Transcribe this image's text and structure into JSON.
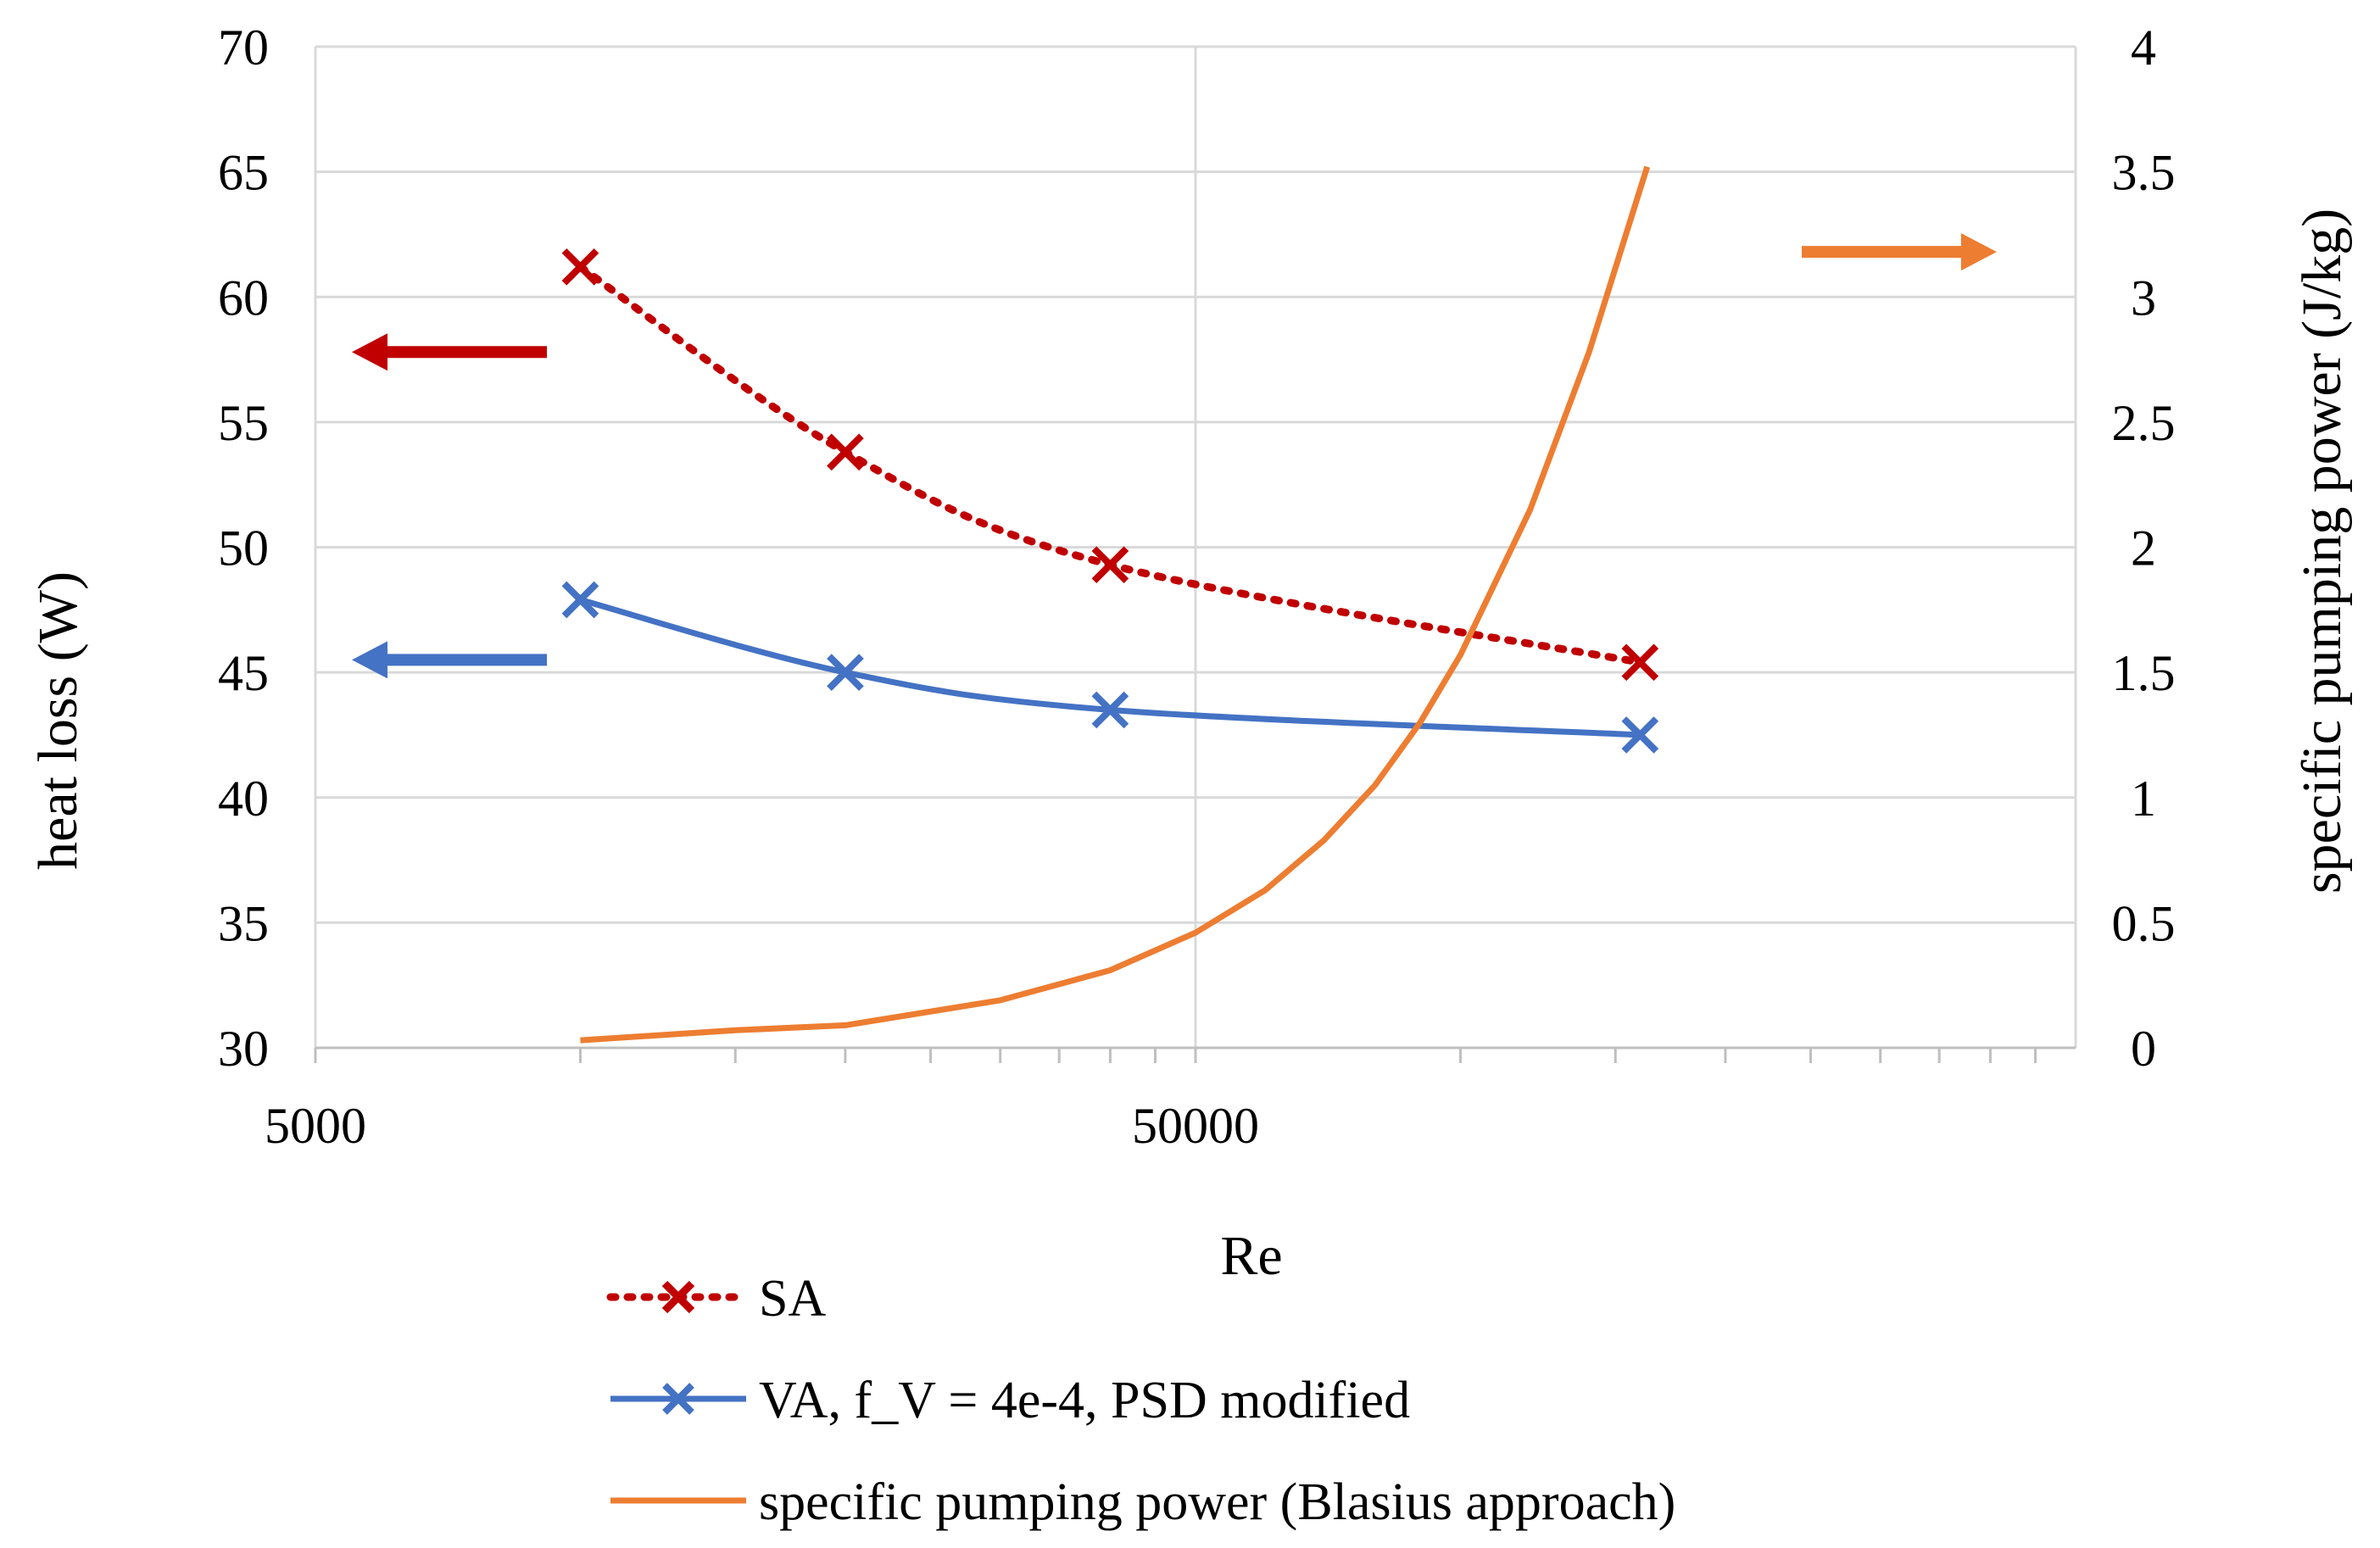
{
  "chart_data": {
    "type": "line",
    "title": "",
    "xlabel": "Re",
    "ylabel_left": "heat loss (W)",
    "ylabel_right": "specific pumping power (J/kg)",
    "x_scale": "log",
    "xlim": [
      5000,
      500000
    ],
    "x_ticklabels": [
      "5000",
      "50000"
    ],
    "ylim_left": [
      30,
      70
    ],
    "yticks_left": [
      "30",
      "35",
      "40",
      "45",
      "50",
      "55",
      "60",
      "65",
      "70"
    ],
    "ylim_right": [
      0,
      4
    ],
    "yticks_right": [
      "0",
      "0.5",
      "1",
      "1.5",
      "2",
      "2.5",
      "3",
      "3.5",
      "4"
    ],
    "gridlines": true,
    "legend_position": "bottom",
    "series": [
      {
        "name": "SA",
        "axis": "left",
        "color": "#C00000",
        "style": "dotted",
        "marker": "x",
        "x": [
          10000,
          20000,
          40000,
          160000
        ],
        "values": [
          61.2,
          53.8,
          49.3,
          45.4
        ]
      },
      {
        "name": "VA, f_V = 4e-4, PSD modified",
        "axis": "left",
        "color": "#4472C4",
        "style": "solid",
        "marker": "x",
        "x": [
          10000,
          20000,
          40000,
          160000
        ],
        "values": [
          47.9,
          45.0,
          43.5,
          42.5
        ]
      },
      {
        "name": "specific pumping power (Blasius approach)",
        "axis": "right",
        "color": "#ED7D31",
        "style": "solid",
        "marker": "none",
        "x": [
          10000,
          15000,
          20000,
          30000,
          40000,
          50000,
          60000,
          70000,
          80000,
          90000,
          100000,
          120000,
          140000,
          163000
        ],
        "values": [
          0.03,
          0.07,
          0.09,
          0.19,
          0.31,
          0.46,
          0.63,
          0.83,
          1.05,
          1.3,
          1.57,
          2.15,
          2.78,
          3.52
        ]
      }
    ],
    "annotations": [
      {
        "type": "arrow",
        "direction": "left",
        "axis_ref": "left",
        "y": 57.8,
        "color": "#C00000"
      },
      {
        "type": "arrow",
        "direction": "left",
        "axis_ref": "left",
        "y": 45.5,
        "color": "#4472C4"
      },
      {
        "type": "arrow",
        "direction": "right",
        "axis_ref": "right",
        "y": 3.18,
        "color": "#ED7D31"
      }
    ]
  }
}
